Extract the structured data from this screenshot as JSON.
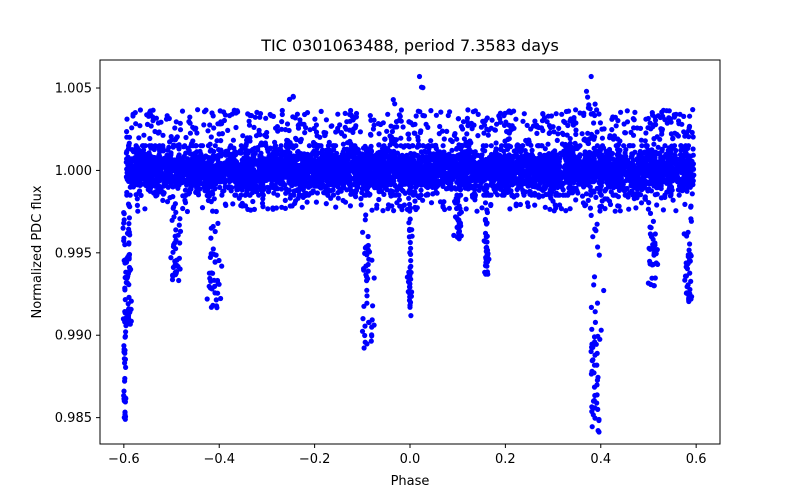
{
  "chart_data": {
    "type": "scatter",
    "title": "TIC 0301063488, period 7.3583 days",
    "xlabel": "Phase",
    "ylabel": "Normalized PDC flux",
    "xlim": [
      -0.65,
      0.65
    ],
    "ylim": [
      0.9834,
      1.0067
    ],
    "xticks": [
      -0.6,
      -0.4,
      -0.2,
      0.0,
      0.2,
      0.4,
      0.6
    ],
    "xtick_labels": [
      "−0.6",
      "−0.4",
      "−0.2",
      "0.0",
      "0.2",
      "0.4",
      "0.6"
    ],
    "yticks": [
      0.985,
      0.99,
      0.995,
      1.0,
      1.005
    ],
    "ytick_labels": [
      "0.985",
      "0.990",
      "0.995",
      "1.000",
      "1.005"
    ],
    "grid": false,
    "marker_color": "#0000ff",
    "series": [
      {
        "name": "flux",
        "baseline": {
          "x_range": [
            -0.595,
            0.595
          ],
          "center": 1.0,
          "core_spread": 0.0015,
          "outlier_max": 1.0037,
          "outlier_min": 0.9975
        },
        "dips": [
          {
            "x": -0.598,
            "width": 0.004,
            "min": 0.9848
          },
          {
            "x": -0.59,
            "width": 0.006,
            "min": 0.9905
          },
          {
            "x": -0.49,
            "width": 0.012,
            "min": 0.993
          },
          {
            "x": -0.41,
            "width": 0.014,
            "min": 0.9915
          },
          {
            "x": -0.09,
            "width": 0.014,
            "min": 0.9892
          },
          {
            "x": 0.0,
            "width": 0.006,
            "min": 0.991
          },
          {
            "x": 0.1,
            "width": 0.01,
            "min": 0.9958
          },
          {
            "x": 0.16,
            "width": 0.006,
            "min": 0.9935
          },
          {
            "x": 0.39,
            "width": 0.014,
            "min": 0.984
          },
          {
            "x": 0.51,
            "width": 0.01,
            "min": 0.993
          },
          {
            "x": 0.585,
            "width": 0.012,
            "min": 0.992
          }
        ],
        "highs": [
          {
            "x": -0.245,
            "y": 1.0045
          },
          {
            "x": -0.035,
            "y": 1.0043
          },
          {
            "x": 0.02,
            "y": 1.0057
          },
          {
            "x": 0.38,
            "y": 1.0057
          },
          {
            "x": 0.37,
            "y": 1.0048
          }
        ]
      }
    ]
  }
}
